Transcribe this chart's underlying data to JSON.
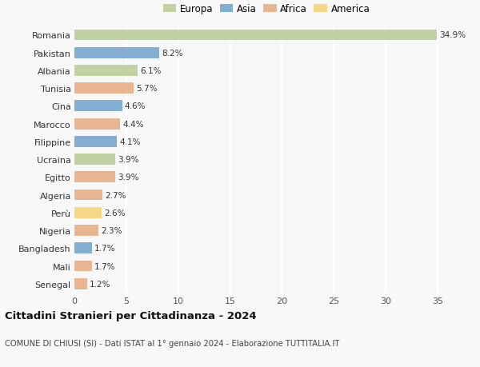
{
  "countries": [
    "Romania",
    "Pakistan",
    "Albania",
    "Tunisia",
    "Cina",
    "Marocco",
    "Filippine",
    "Ucraina",
    "Egitto",
    "Algeria",
    "Perù",
    "Nigeria",
    "Bangladesh",
    "Mali",
    "Senegal"
  ],
  "values": [
    34.9,
    8.2,
    6.1,
    5.7,
    4.6,
    4.4,
    4.1,
    3.9,
    3.9,
    2.7,
    2.6,
    2.3,
    1.7,
    1.7,
    1.2
  ],
  "continents": [
    "Europa",
    "Asia",
    "Europa",
    "Africa",
    "Asia",
    "Africa",
    "Asia",
    "Europa",
    "Africa",
    "Africa",
    "America",
    "Africa",
    "Asia",
    "Africa",
    "Africa"
  ],
  "colors": {
    "Europa": "#b5c98e",
    "Asia": "#6b9ec9",
    "Africa": "#e8a87c",
    "America": "#f5d06e"
  },
  "legend_order": [
    "Europa",
    "Asia",
    "Africa",
    "America"
  ],
  "xlim": [
    0,
    37
  ],
  "xticks": [
    0,
    5,
    10,
    15,
    20,
    25,
    30,
    35
  ],
  "title": "Cittadini Stranieri per Cittadinanza - 2024",
  "subtitle": "COMUNE DI CHIUSI (SI) - Dati ISTAT al 1° gennaio 2024 - Elaborazione TUTTITALIA.IT",
  "bg_color": "#f8f8f8",
  "grid_color": "#ffffff",
  "bar_alpha": 0.82,
  "bar_height": 0.62
}
